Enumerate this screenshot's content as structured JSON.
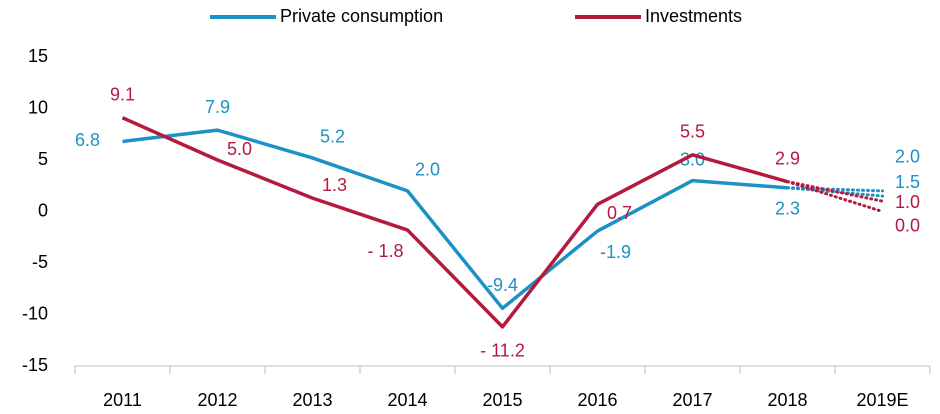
{
  "chart_data": {
    "type": "line",
    "categories": [
      "2011",
      "2012",
      "2013",
      "2014",
      "2015",
      "2016",
      "2017",
      "2018",
      "2019E"
    ],
    "series": [
      {
        "name": "Private consumption",
        "color": "#1b91c4",
        "values": [
          6.8,
          7.9,
          5.2,
          2.0,
          -9.4,
          -1.9,
          3.0,
          2.3,
          null
        ],
        "value_labels": [
          "6.8",
          "7.9",
          "5.2",
          "2.0",
          "-9.4",
          "-1.9",
          "3.0",
          "2.3",
          null
        ],
        "estimates": [
          2.0,
          1.5
        ],
        "estimate_labels": [
          "2.0",
          "1.5"
        ]
      },
      {
        "name": "Investments",
        "color": "#b41a3e",
        "values": [
          9.1,
          5.0,
          1.3,
          -1.8,
          -11.2,
          0.7,
          5.5,
          2.9,
          null
        ],
        "value_labels": [
          "9.1",
          "5.0",
          "1.3",
          "- 1.8",
          "- 11.2",
          "0.7",
          "5.5",
          "2.9",
          null
        ],
        "estimates": [
          1.0,
          0.0
        ],
        "estimate_labels": [
          "1.0",
          "0.0"
        ]
      }
    ],
    "ylim": [
      -15,
      15
    ],
    "yticks": [
      -15,
      -10,
      -5,
      0,
      5,
      10,
      15
    ],
    "grid": false,
    "legend": "top"
  }
}
